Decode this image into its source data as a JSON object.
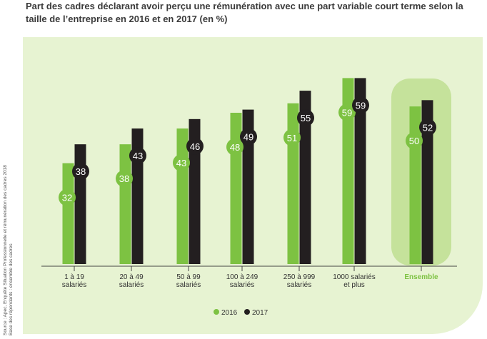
{
  "title": "Part des cadres déclarant avoir perçu une rémunération avec une part variable court terme selon la taille de l’entreprise en 2016 et en 2017 (en %)",
  "source_line1": "Source : Apec, Enquête Situation Professionnelle et rémunération des cadres 2018",
  "source_line2": "Base des répondants : ensemble des cadres",
  "colors": {
    "2016": "#7dc242",
    "2017": "#231f20",
    "panel": "#e7f3d2",
    "highlight": "#c5e29b",
    "ensemble_label": "#7dc242"
  },
  "chart_data": {
    "type": "bar",
    "categories": [
      [
        "1 à 19",
        "salariés"
      ],
      [
        "20 à 49",
        "salariés"
      ],
      [
        "50 à 99",
        "salariés"
      ],
      [
        "100 à 249",
        "salariés"
      ],
      [
        "250 à 999",
        "salariés"
      ],
      [
        "1000 salariés",
        "et plus"
      ],
      [
        "Ensemble"
      ]
    ],
    "series": [
      {
        "name": "2016",
        "values": [
          32,
          38,
          43,
          48,
          51,
          59,
          50
        ]
      },
      {
        "name": "2017",
        "values": [
          38,
          43,
          46,
          49,
          55,
          59,
          52
        ]
      }
    ],
    "highlighted_category": "Ensemble",
    "legend_position": "bottom-center",
    "ylim": [
      0,
      72
    ],
    "grid": false
  }
}
